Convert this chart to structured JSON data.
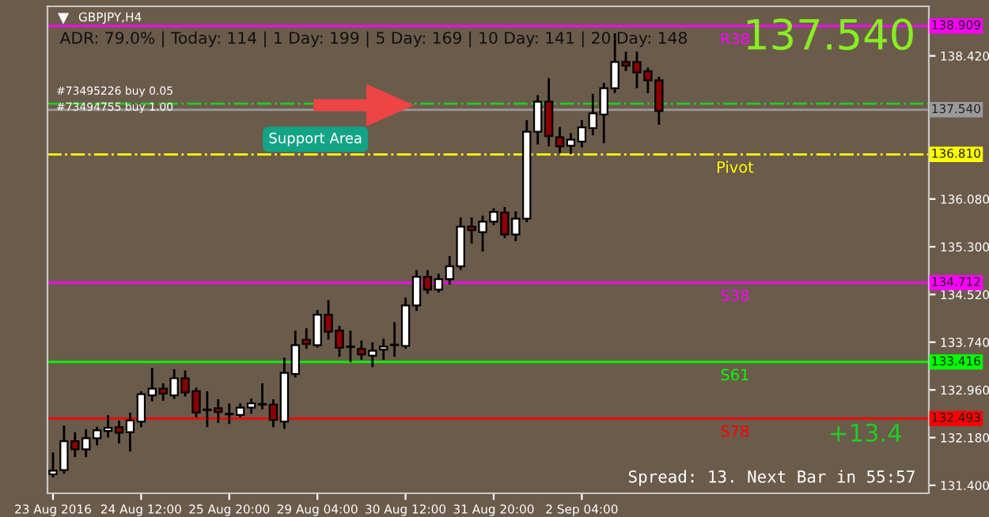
{
  "chart_data": {
    "type": "candlestick",
    "title": "GBPJPY,H4",
    "categories": [
      "23 Aug 2016",
      null,
      null,
      null,
      null,
      null,
      null,
      null,
      "24 Aug 12:00",
      null,
      null,
      null,
      null,
      null,
      null,
      null,
      "25 Aug 20:00",
      null,
      null,
      null,
      null,
      null,
      null,
      null,
      "29 Aug 04:00",
      null,
      null,
      null,
      null,
      null,
      null,
      null,
      "30 Aug 12:00",
      null,
      null,
      null,
      null,
      null,
      null,
      null,
      "31 Aug 20:00",
      null,
      null,
      null,
      null,
      null,
      null,
      null,
      "2 Sep 04:00",
      null,
      null,
      null,
      null,
      null,
      null,
      null,
      null,
      null,
      null,
      null,
      null,
      null,
      null,
      null,
      null,
      null,
      null,
      null,
      null,
      null,
      null,
      null,
      null,
      null,
      null,
      null,
      null,
      null,
      null,
      null
    ],
    "ohlc": [
      [
        131.58,
        131.92,
        131.55,
        131.64
      ],
      [
        131.65,
        132.36,
        131.61,
        132.12
      ],
      [
        132.12,
        132.25,
        131.88,
        131.99
      ],
      [
        131.99,
        132.3,
        131.88,
        132.17
      ],
      [
        132.17,
        132.34,
        132.07,
        132.3
      ],
      [
        132.29,
        132.53,
        132.2,
        132.34
      ],
      [
        132.35,
        132.44,
        132.1,
        132.26
      ],
      [
        132.27,
        132.57,
        131.97,
        132.46
      ],
      [
        132.44,
        132.92,
        132.37,
        132.89
      ],
      [
        132.87,
        133.3,
        132.79,
        132.98
      ],
      [
        132.98,
        133.05,
        132.8,
        132.9
      ],
      [
        132.87,
        133.28,
        132.83,
        133.15
      ],
      [
        133.15,
        133.26,
        132.87,
        132.92
      ],
      [
        132.94,
        132.98,
        132.53,
        132.59
      ],
      [
        132.64,
        132.92,
        132.37,
        132.63
      ],
      [
        132.66,
        132.79,
        132.44,
        132.6
      ],
      [
        132.57,
        132.72,
        132.42,
        132.56
      ],
      [
        132.55,
        132.72,
        132.53,
        132.67
      ],
      [
        132.67,
        132.8,
        132.59,
        132.74
      ],
      [
        132.73,
        133.05,
        132.66,
        132.72
      ],
      [
        132.72,
        132.79,
        132.37,
        132.47
      ],
      [
        132.44,
        133.47,
        132.34,
        133.24
      ],
      [
        133.22,
        133.91,
        133.18,
        133.69
      ],
      [
        133.78,
        133.95,
        133.65,
        133.71
      ],
      [
        133.69,
        134.25,
        133.67,
        134.19
      ],
      [
        134.19,
        134.41,
        133.8,
        133.91
      ],
      [
        133.93,
        133.99,
        133.52,
        133.65
      ],
      [
        133.67,
        133.91,
        133.43,
        133.66
      ],
      [
        133.63,
        133.75,
        133.47,
        133.54
      ],
      [
        133.52,
        133.72,
        133.35,
        133.6
      ],
      [
        133.62,
        133.78,
        133.47,
        133.67
      ],
      [
        133.69,
        134.05,
        133.52,
        133.7
      ],
      [
        133.68,
        134.45,
        133.65,
        134.34
      ],
      [
        134.34,
        134.9,
        134.27,
        134.81
      ],
      [
        134.81,
        134.9,
        134.55,
        134.6
      ],
      [
        134.6,
        134.84,
        134.57,
        134.77
      ],
      [
        134.77,
        135.13,
        134.7,
        134.98
      ],
      [
        134.98,
        135.76,
        134.94,
        135.63
      ],
      [
        135.63,
        135.76,
        135.37,
        135.57
      ],
      [
        135.54,
        135.79,
        135.24,
        135.71
      ],
      [
        135.71,
        135.91,
        135.67,
        135.87
      ],
      [
        135.86,
        135.93,
        135.46,
        135.5
      ],
      [
        135.5,
        135.86,
        135.41,
        135.76
      ],
      [
        135.76,
        137.35,
        135.72,
        137.18
      ],
      [
        137.18,
        137.76,
        136.99,
        137.67
      ],
      [
        137.67,
        138.04,
        136.96,
        137.11
      ],
      [
        137.09,
        137.24,
        136.85,
        136.94
      ],
      [
        136.95,
        137.14,
        136.83,
        137.05
      ],
      [
        137.02,
        137.35,
        136.94,
        137.25
      ],
      [
        137.24,
        137.78,
        137.14,
        137.48
      ],
      [
        137.46,
        137.96,
        137.01,
        137.89
      ],
      [
        137.89,
        138.77,
        137.83,
        138.32
      ],
      [
        138.32,
        138.47,
        138.19,
        138.26
      ],
      [
        138.32,
        138.47,
        137.91,
        138.15
      ],
      [
        138.17,
        138.21,
        137.83,
        138.02
      ],
      [
        138.02,
        138.06,
        137.31,
        137.52
      ],
      null,
      null,
      null,
      null,
      null,
      null,
      null,
      null,
      null,
      null,
      null,
      null,
      null,
      null,
      null,
      null,
      null,
      null,
      null,
      null,
      null,
      null,
      null,
      null
    ],
    "ylim": [
      131.27,
      139.23
    ],
    "yticks": [
      {
        "value": 131.4,
        "label": "131.400"
      },
      {
        "value": 132.18,
        "label": "132.180"
      },
      {
        "value": 132.96,
        "label": "132.960"
      },
      {
        "value": 133.74,
        "label": "133.740"
      },
      {
        "value": 134.52,
        "label": "134.520"
      },
      {
        "value": 135.3,
        "label": "135.300"
      },
      {
        "value": 136.08,
        "label": "136.080"
      },
      {
        "value": 138.42,
        "label": "138.420"
      }
    ],
    "ref_lines": [
      {
        "axis": "y",
        "value": 138.909,
        "label": "138.909",
        "color": "#ff00ff",
        "line_style": "solid"
      },
      {
        "axis": "y",
        "value": 137.64,
        "color": "#22cc22",
        "line_style": "dashdot"
      },
      {
        "axis": "y",
        "value": 137.54,
        "label": "137.540",
        "color": "#9a9a9a",
        "line_style": "solid"
      },
      {
        "axis": "y",
        "value": 136.81,
        "label": "136.810",
        "color": "#ffff00",
        "line_style": "dashdot"
      },
      {
        "axis": "y",
        "value": 134.712,
        "label": "134.712",
        "color": "#ff00ff",
        "line_style": "solid"
      },
      {
        "axis": "y",
        "value": 133.416,
        "label": "133.416",
        "color": "#00ff00",
        "line_style": "solid"
      },
      {
        "axis": "y",
        "value": 132.493,
        "label": "132.493",
        "color": "#ff0000",
        "line_style": "solid"
      }
    ],
    "annotations": [
      "ADR: 79.0% | Today: 114 | 1 Day: 199 | 5 Day: 169 | 10 Day: 141 | 20 Day: 148",
      "#73495226 buy 0.05",
      "#73494755 buy 1.00",
      "Support Area",
      "137.540",
      "+13.4",
      "Spread: 13. Next Bar in 55:57",
      {
        "text": "R38",
        "y": 138.909
      },
      {
        "text": "Pivot",
        "y": 136.81
      },
      {
        "text": "S38",
        "y": 134.712
      },
      {
        "text": "S61",
        "y": 133.416
      },
      {
        "text": "S78",
        "y": 132.493
      }
    ],
    "grid": false,
    "legend": false
  }
}
